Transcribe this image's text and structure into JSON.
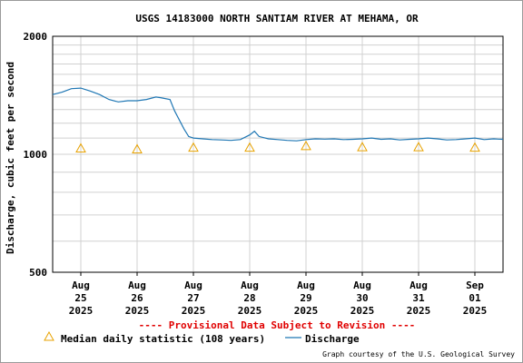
{
  "chart_data": {
    "type": "line",
    "title": "USGS 14183000 NORTH SANTIAM RIVER AT MEHAMA, OR",
    "ylabel": "Discharge, cubic feet per second",
    "xlabel": "",
    "yscale": "log",
    "ylim": [
      500,
      2000
    ],
    "y_ticks": [
      "2000",
      "1000",
      "500"
    ],
    "y_tick_values": [
      2000,
      1000,
      500
    ],
    "y_grid": [
      600,
      700,
      800,
      900,
      1100,
      1200,
      1300,
      1400,
      1500,
      1600,
      1700,
      1800,
      1900
    ],
    "xlim": [
      "2025-08-24T12:00",
      "2025-09-01T12:00"
    ],
    "x_ticks": [
      {
        "date": "2025-08-25T00:00",
        "label": [
          "Aug",
          "25",
          "2025"
        ]
      },
      {
        "date": "2025-08-26T00:00",
        "label": [
          "Aug",
          "26",
          "2025"
        ]
      },
      {
        "date": "2025-08-27T00:00",
        "label": [
          "Aug",
          "27",
          "2025"
        ]
      },
      {
        "date": "2025-08-28T00:00",
        "label": [
          "Aug",
          "28",
          "2025"
        ]
      },
      {
        "date": "2025-08-29T00:00",
        "label": [
          "Aug",
          "29",
          "2025"
        ]
      },
      {
        "date": "2025-08-30T00:00",
        "label": [
          "Aug",
          "30",
          "2025"
        ]
      },
      {
        "date": "2025-08-31T00:00",
        "label": [
          "Aug",
          "31",
          "2025"
        ]
      },
      {
        "date": "2025-09-01T00:00",
        "label": [
          "Sep",
          "01",
          "2025"
        ]
      }
    ],
    "grid": true,
    "series": [
      {
        "name": "Discharge",
        "color": "#1f77b4",
        "points": [
          [
            "2025-08-24T12:00",
            1420
          ],
          [
            "2025-08-24T16:00",
            1440
          ],
          [
            "2025-08-24T20:00",
            1470
          ],
          [
            "2025-08-25T00:00",
            1475
          ],
          [
            "2025-08-25T04:00",
            1450
          ],
          [
            "2025-08-25T08:00",
            1420
          ],
          [
            "2025-08-25T12:00",
            1380
          ],
          [
            "2025-08-25T16:00",
            1360
          ],
          [
            "2025-08-25T20:00",
            1370
          ],
          [
            "2025-08-26T00:00",
            1370
          ],
          [
            "2025-08-26T04:00",
            1380
          ],
          [
            "2025-08-26T08:00",
            1400
          ],
          [
            "2025-08-26T10:00",
            1395
          ],
          [
            "2025-08-26T14:00",
            1380
          ],
          [
            "2025-08-26T16:00",
            1290
          ],
          [
            "2025-08-26T20:00",
            1160
          ],
          [
            "2025-08-26T22:00",
            1110
          ],
          [
            "2025-08-27T00:00",
            1100
          ],
          [
            "2025-08-27T04:00",
            1095
          ],
          [
            "2025-08-27T08:00",
            1090
          ],
          [
            "2025-08-27T12:00",
            1088
          ],
          [
            "2025-08-27T16:00",
            1085
          ],
          [
            "2025-08-27T20:00",
            1090
          ],
          [
            "2025-08-28T00:00",
            1120
          ],
          [
            "2025-08-28T02:00",
            1145
          ],
          [
            "2025-08-28T04:00",
            1110
          ],
          [
            "2025-08-28T08:00",
            1095
          ],
          [
            "2025-08-28T12:00",
            1090
          ],
          [
            "2025-08-28T16:00",
            1085
          ],
          [
            "2025-08-28T20:00",
            1082
          ],
          [
            "2025-08-29T00:00",
            1090
          ],
          [
            "2025-08-29T04:00",
            1095
          ],
          [
            "2025-08-29T08:00",
            1093
          ],
          [
            "2025-08-29T12:00",
            1095
          ],
          [
            "2025-08-29T16:00",
            1090
          ],
          [
            "2025-08-29T20:00",
            1092
          ],
          [
            "2025-08-30T00:00",
            1095
          ],
          [
            "2025-08-30T04:00",
            1100
          ],
          [
            "2025-08-30T08:00",
            1092
          ],
          [
            "2025-08-30T12:00",
            1095
          ],
          [
            "2025-08-30T16:00",
            1088
          ],
          [
            "2025-08-30T20:00",
            1092
          ],
          [
            "2025-08-31T00:00",
            1095
          ],
          [
            "2025-08-31T04:00",
            1100
          ],
          [
            "2025-08-31T08:00",
            1095
          ],
          [
            "2025-08-31T12:00",
            1088
          ],
          [
            "2025-08-31T16:00",
            1090
          ],
          [
            "2025-08-31T20:00",
            1095
          ],
          [
            "2025-09-01T00:00",
            1100
          ],
          [
            "2025-09-01T04:00",
            1090
          ],
          [
            "2025-09-01T08:00",
            1095
          ],
          [
            "2025-09-01T10:00",
            1093
          ],
          [
            "2025-09-01T12:00",
            1092
          ]
        ]
      },
      {
        "name": "Median daily statistic (108 years)",
        "marker": "triangle",
        "color": "#e8a200",
        "points": [
          [
            "2025-08-25T00:00",
            1035
          ],
          [
            "2025-08-26T00:00",
            1030
          ],
          [
            "2025-08-27T00:00",
            1040
          ],
          [
            "2025-08-28T00:00",
            1040
          ],
          [
            "2025-08-29T00:00",
            1050
          ],
          [
            "2025-08-30T00:00",
            1043
          ],
          [
            "2025-08-31T00:00",
            1043
          ],
          [
            "2025-09-01T00:00",
            1040
          ]
        ]
      }
    ],
    "provisional_note": "---- Provisional Data Subject to Revision ----",
    "legend": {
      "placement": "bottom",
      "items": [
        "Median daily statistic (108 years)",
        "Discharge"
      ]
    },
    "credit": "Graph courtesy of the U.S. Geological Survey"
  }
}
